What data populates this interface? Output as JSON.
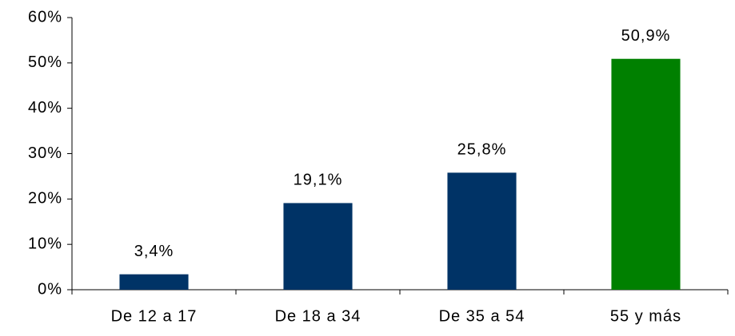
{
  "chart_data": {
    "type": "bar",
    "categories": [
      "De 12 a 17",
      "De 18 a 34",
      "De 35 a 54",
      "55 y más"
    ],
    "values": [
      3.4,
      19.1,
      25.8,
      50.9
    ],
    "value_labels": [
      "3,4%",
      "19,1%",
      "25,8%",
      "50,9%"
    ],
    "colors": [
      "#003366",
      "#003366",
      "#003366",
      "#008000"
    ],
    "ylim": [
      0,
      60
    ],
    "yticks": [
      {
        "value": 0,
        "label": "0%"
      },
      {
        "value": 10,
        "label": "10%"
      },
      {
        "value": 20,
        "label": "20%"
      },
      {
        "value": 30,
        "label": "30%"
      },
      {
        "value": 40,
        "label": "40%"
      },
      {
        "value": 50,
        "label": "50%"
      },
      {
        "value": 60,
        "label": "60%"
      }
    ],
    "grid": false
  }
}
